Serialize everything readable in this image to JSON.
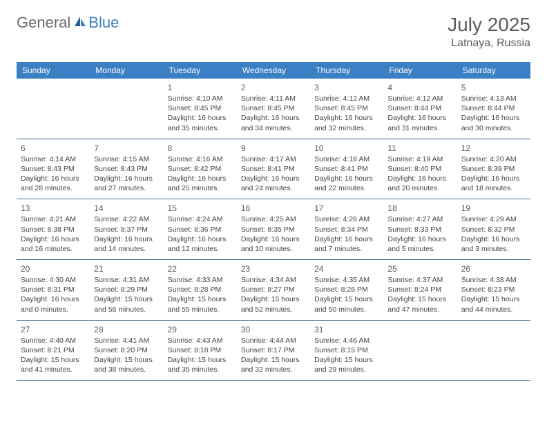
{
  "logo": {
    "general": "General",
    "blue": "Blue"
  },
  "title": "July 2025",
  "location": "Latnaya, Russia",
  "colors": {
    "header_bg": "#3b7fc4",
    "header_text": "#ffffff",
    "row_border": "#3b6a9a",
    "title_color": "#5a5a5a",
    "text_color": "#444444"
  },
  "dayHeaders": [
    "Sunday",
    "Monday",
    "Tuesday",
    "Wednesday",
    "Thursday",
    "Friday",
    "Saturday"
  ],
  "weeks": [
    [
      null,
      null,
      {
        "n": "1",
        "sr": "4:10 AM",
        "ss": "8:45 PM",
        "dl": "16 hours and 35 minutes."
      },
      {
        "n": "2",
        "sr": "4:11 AM",
        "ss": "8:45 PM",
        "dl": "16 hours and 34 minutes."
      },
      {
        "n": "3",
        "sr": "4:12 AM",
        "ss": "8:45 PM",
        "dl": "16 hours and 32 minutes."
      },
      {
        "n": "4",
        "sr": "4:12 AM",
        "ss": "8:44 PM",
        "dl": "16 hours and 31 minutes."
      },
      {
        "n": "5",
        "sr": "4:13 AM",
        "ss": "8:44 PM",
        "dl": "16 hours and 30 minutes."
      }
    ],
    [
      {
        "n": "6",
        "sr": "4:14 AM",
        "ss": "8:43 PM",
        "dl": "16 hours and 28 minutes."
      },
      {
        "n": "7",
        "sr": "4:15 AM",
        "ss": "8:43 PM",
        "dl": "16 hours and 27 minutes."
      },
      {
        "n": "8",
        "sr": "4:16 AM",
        "ss": "8:42 PM",
        "dl": "16 hours and 25 minutes."
      },
      {
        "n": "9",
        "sr": "4:17 AM",
        "ss": "8:41 PM",
        "dl": "16 hours and 24 minutes."
      },
      {
        "n": "10",
        "sr": "4:18 AM",
        "ss": "8:41 PM",
        "dl": "16 hours and 22 minutes."
      },
      {
        "n": "11",
        "sr": "4:19 AM",
        "ss": "8:40 PM",
        "dl": "16 hours and 20 minutes."
      },
      {
        "n": "12",
        "sr": "4:20 AM",
        "ss": "8:39 PM",
        "dl": "16 hours and 18 minutes."
      }
    ],
    [
      {
        "n": "13",
        "sr": "4:21 AM",
        "ss": "8:38 PM",
        "dl": "16 hours and 16 minutes."
      },
      {
        "n": "14",
        "sr": "4:22 AM",
        "ss": "8:37 PM",
        "dl": "16 hours and 14 minutes."
      },
      {
        "n": "15",
        "sr": "4:24 AM",
        "ss": "8:36 PM",
        "dl": "16 hours and 12 minutes."
      },
      {
        "n": "16",
        "sr": "4:25 AM",
        "ss": "8:35 PM",
        "dl": "16 hours and 10 minutes."
      },
      {
        "n": "17",
        "sr": "4:26 AM",
        "ss": "8:34 PM",
        "dl": "16 hours and 7 minutes."
      },
      {
        "n": "18",
        "sr": "4:27 AM",
        "ss": "8:33 PM",
        "dl": "16 hours and 5 minutes."
      },
      {
        "n": "19",
        "sr": "4:29 AM",
        "ss": "8:32 PM",
        "dl": "16 hours and 3 minutes."
      }
    ],
    [
      {
        "n": "20",
        "sr": "4:30 AM",
        "ss": "8:31 PM",
        "dl": "16 hours and 0 minutes."
      },
      {
        "n": "21",
        "sr": "4:31 AM",
        "ss": "8:29 PM",
        "dl": "15 hours and 58 minutes."
      },
      {
        "n": "22",
        "sr": "4:33 AM",
        "ss": "8:28 PM",
        "dl": "15 hours and 55 minutes."
      },
      {
        "n": "23",
        "sr": "4:34 AM",
        "ss": "8:27 PM",
        "dl": "15 hours and 52 minutes."
      },
      {
        "n": "24",
        "sr": "4:35 AM",
        "ss": "8:26 PM",
        "dl": "15 hours and 50 minutes."
      },
      {
        "n": "25",
        "sr": "4:37 AM",
        "ss": "8:24 PM",
        "dl": "15 hours and 47 minutes."
      },
      {
        "n": "26",
        "sr": "4:38 AM",
        "ss": "8:23 PM",
        "dl": "15 hours and 44 minutes."
      }
    ],
    [
      {
        "n": "27",
        "sr": "4:40 AM",
        "ss": "8:21 PM",
        "dl": "15 hours and 41 minutes."
      },
      {
        "n": "28",
        "sr": "4:41 AM",
        "ss": "8:20 PM",
        "dl": "15 hours and 38 minutes."
      },
      {
        "n": "29",
        "sr": "4:43 AM",
        "ss": "8:18 PM",
        "dl": "15 hours and 35 minutes."
      },
      {
        "n": "30",
        "sr": "4:44 AM",
        "ss": "8:17 PM",
        "dl": "15 hours and 32 minutes."
      },
      {
        "n": "31",
        "sr": "4:46 AM",
        "ss": "8:15 PM",
        "dl": "15 hours and 29 minutes."
      },
      null,
      null
    ]
  ],
  "labels": {
    "sunrise": "Sunrise: ",
    "sunset": "Sunset: ",
    "daylight": "Daylight: "
  }
}
